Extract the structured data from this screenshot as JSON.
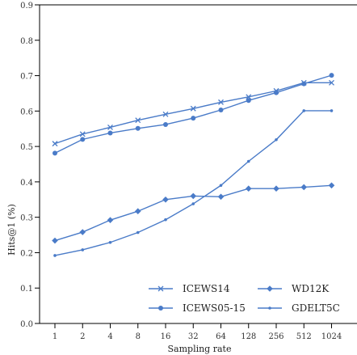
{
  "chart_data": {
    "type": "line",
    "xlabel": "Sampling rate",
    "ylabel": "Hits@1 (%)",
    "categories": [
      "1",
      "2",
      "4",
      "8",
      "16",
      "32",
      "64",
      "128",
      "256",
      "512",
      "1024"
    ],
    "ylim": [
      0.0,
      0.9
    ],
    "yticks": [
      "0.0",
      "0.1",
      "0.2",
      "0.3",
      "0.4",
      "0.5",
      "0.6",
      "0.7",
      "0.8",
      "0.9"
    ],
    "grid": false,
    "legend_position": "bottom-right",
    "color": "#4a7bc8",
    "series": [
      {
        "name": "ICEWS14",
        "marker": "x",
        "values": [
          0.508,
          0.535,
          0.554,
          0.574,
          0.591,
          0.607,
          0.625,
          0.64,
          0.657,
          0.68,
          0.68
        ]
      },
      {
        "name": "ICEWS05-15",
        "marker": "circle",
        "values": [
          0.481,
          0.52,
          0.538,
          0.551,
          0.562,
          0.58,
          0.603,
          0.63,
          0.652,
          0.677,
          0.701
        ]
      },
      {
        "name": "WD12K",
        "marker": "diamond",
        "values": [
          0.234,
          0.258,
          0.292,
          0.317,
          0.35,
          0.36,
          0.358,
          0.381,
          0.381,
          0.385,
          0.39
        ]
      },
      {
        "name": "GDELT5C",
        "marker": "dot",
        "values": [
          0.192,
          0.208,
          0.229,
          0.257,
          0.293,
          0.338,
          0.39,
          0.458,
          0.519,
          0.601,
          0.601
        ]
      }
    ]
  }
}
